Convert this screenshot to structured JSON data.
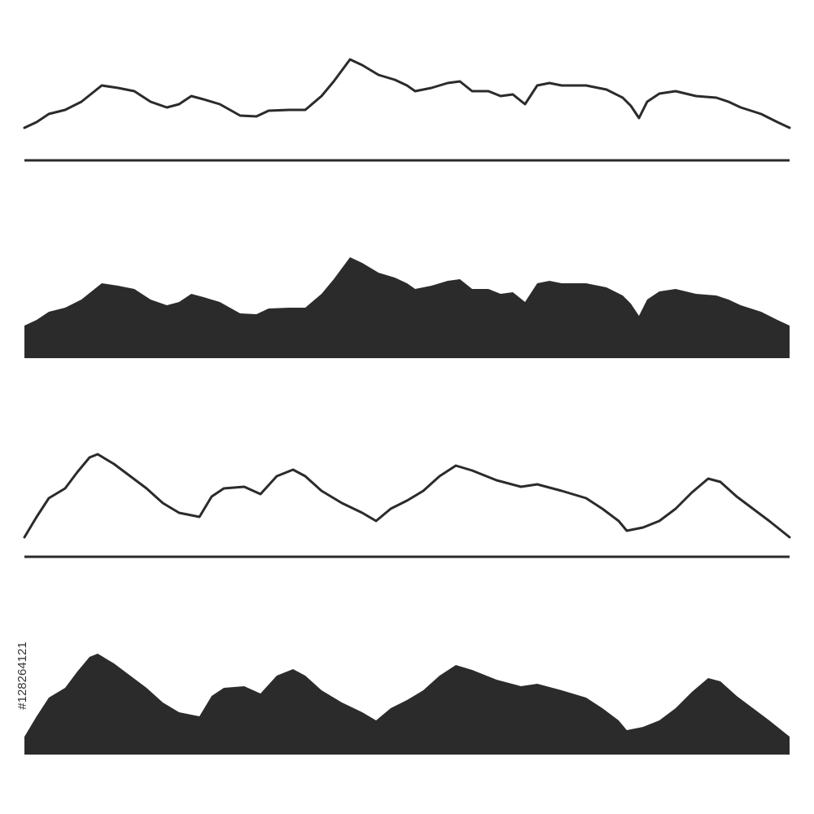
{
  "stock_id": "#128264121"
}
